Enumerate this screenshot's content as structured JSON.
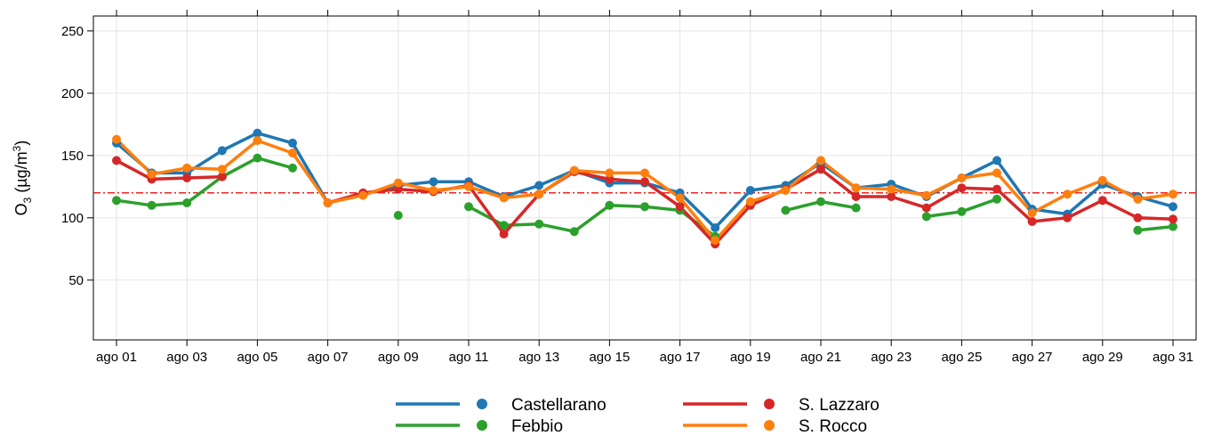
{
  "chart_data": {
    "type": "line",
    "ylabel": [
      "O",
      "3",
      " (µg/m",
      "3",
      ")"
    ],
    "categories": [
      "ago 01",
      null,
      "ago 03",
      null,
      "ago 05",
      null,
      "ago 07",
      null,
      "ago 09",
      null,
      "ago 11",
      null,
      "ago 13",
      null,
      "ago 15",
      null,
      "ago 17",
      null,
      "ago 19",
      null,
      "ago 21",
      null,
      "ago 23",
      null,
      "ago 25",
      null,
      "ago 27",
      null,
      "ago 29",
      null,
      "ago 31"
    ],
    "ylim": [
      2,
      262
    ],
    "yticks": [
      50,
      100,
      150,
      200,
      250
    ],
    "grid": true,
    "reference_line": {
      "value": 120,
      "color": "#e8231f"
    },
    "legend": "bottom",
    "series": [
      {
        "name": "Castellarano",
        "color": "#1f77b4",
        "values": [
          160,
          136,
          136,
          154,
          168,
          160,
          112,
          119,
          126,
          129,
          129,
          117,
          126,
          138,
          128,
          128,
          120,
          92,
          122,
          126,
          144,
          124,
          127,
          117,
          132,
          146,
          107,
          103,
          127,
          117,
          109
        ]
      },
      {
        "name": "Febbio",
        "color": "#2ca02c",
        "values": [
          114,
          110,
          112,
          133,
          148,
          140,
          null,
          null,
          102,
          null,
          109,
          94,
          95,
          89,
          110,
          109,
          106,
          85,
          null,
          106,
          113,
          108,
          null,
          101,
          105,
          115,
          null,
          null,
          null,
          90,
          93
        ]
      },
      {
        "name": "S. Lazzaro",
        "color": "#d62728",
        "values": [
          146,
          131,
          132,
          133,
          null,
          null,
          112,
          120,
          123,
          121,
          126,
          87,
          119,
          137,
          131,
          129,
          109,
          79,
          110,
          123,
          139,
          117,
          117,
          108,
          124,
          123,
          97,
          100,
          114,
          100,
          99
        ]
      },
      {
        "name": "S. Rocco",
        "color": "#ff7f0e",
        "values": [
          163,
          135,
          140,
          139,
          162,
          152,
          112,
          118,
          128,
          122,
          125,
          116,
          119,
          138,
          136,
          136,
          116,
          82,
          113,
          122,
          146,
          124,
          123,
          118,
          132,
          136,
          104,
          119,
          130,
          115,
          119
        ]
      }
    ]
  }
}
